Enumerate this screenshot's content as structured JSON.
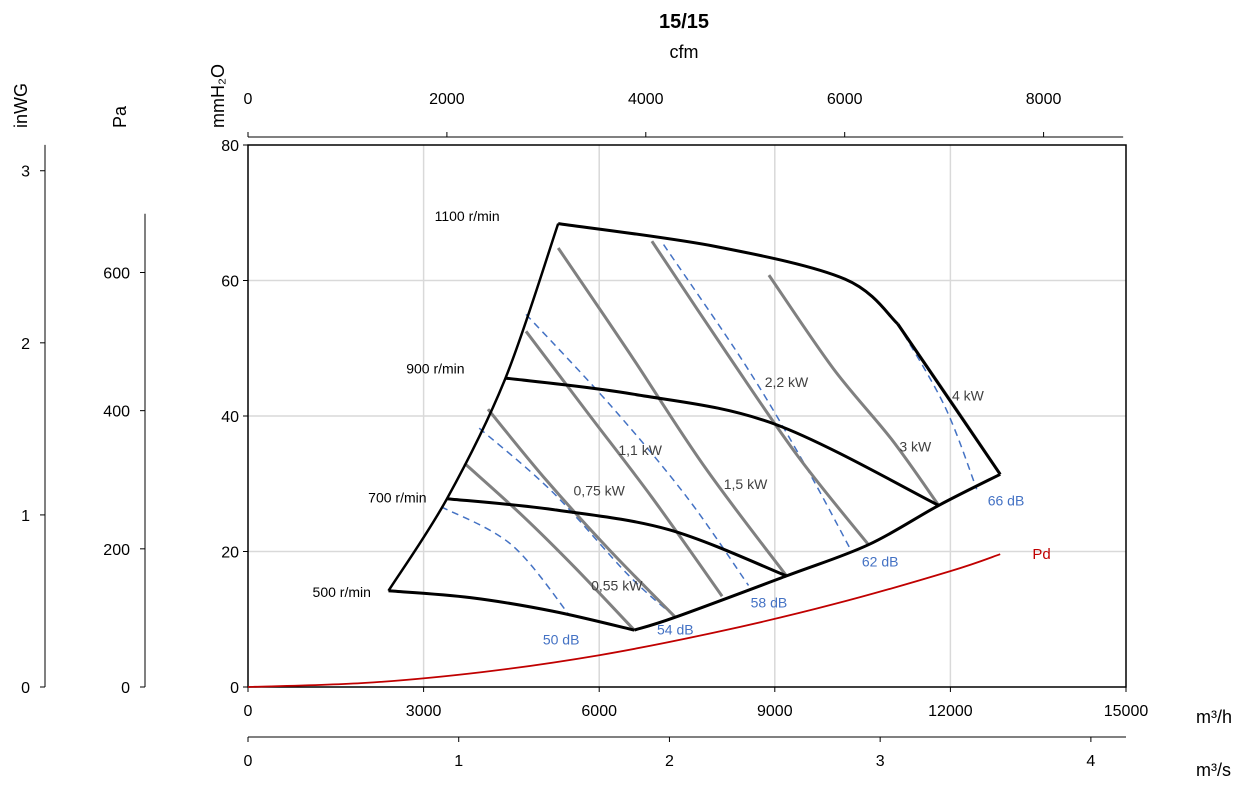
{
  "chart_data": {
    "type": "line",
    "title": "15/15",
    "xlabel": "m³/h",
    "xlabel_secondary": "m³/s",
    "xlabel_top": "cfm",
    "ylabel": "mmH₂O",
    "ylabel_secondary_pa": "Pa",
    "ylabel_secondary_inwg": "inWG",
    "xlim": [
      0,
      15000
    ],
    "ylim": [
      0,
      80
    ],
    "grid": true,
    "x_ticks": [
      0,
      3000,
      6000,
      9000,
      12000,
      15000
    ],
    "x_tick_labels": [
      "0",
      "3000",
      "6000",
      "9000",
      "12000",
      "15000"
    ],
    "y_ticks": [
      0,
      20,
      40,
      60,
      80
    ],
    "y_tick_labels": [
      "0",
      "20",
      "40",
      "60",
      "80"
    ],
    "cfm_ticks": [
      0,
      2000,
      4000,
      6000,
      8000
    ],
    "cfm_tick_labels": [
      "0",
      "2000",
      "4000",
      "6000",
      "8000"
    ],
    "m3s_ticks": [
      0,
      1,
      2,
      3,
      4
    ],
    "m3s_tick_labels": [
      "0",
      "1",
      "2",
      "3",
      "4"
    ],
    "pa_ticks": [
      0,
      200,
      400,
      600
    ],
    "pa_tick_labels": [
      "0",
      "200",
      "400",
      "600"
    ],
    "inwg_ticks": [
      0,
      1,
      2,
      3
    ],
    "inwg_tick_labels": [
      "0",
      "1",
      "2",
      "3"
    ],
    "rpm_curves": [
      {
        "name": "500 r/min",
        "points": [
          [
            2400,
            14.2
          ],
          [
            3800,
            13.2
          ],
          [
            5200,
            11.2
          ],
          [
            6600,
            8.4
          ]
        ]
      },
      {
        "name": "700 r/min",
        "points": [
          [
            3400,
            27.8
          ],
          [
            5200,
            26.2
          ],
          [
            7200,
            23.2
          ],
          [
            9200,
            16.4
          ]
        ]
      },
      {
        "name": "900 r/min",
        "points": [
          [
            4400,
            45.6
          ],
          [
            6600,
            43.2
          ],
          [
            9000,
            38.8
          ],
          [
            11800,
            26.8
          ]
        ]
      },
      {
        "name": "1100 r/min",
        "points": [
          [
            5300,
            68.4
          ],
          [
            8000,
            65.0
          ],
          [
            10200,
            60.2
          ],
          [
            11100,
            53.6
          ]
        ]
      }
    ],
    "boundary_left": [
      [
        2400,
        14.2
      ],
      [
        3400,
        27.8
      ],
      [
        4400,
        45.6
      ],
      [
        5300,
        68.4
      ]
    ],
    "boundary_right": [
      [
        6600,
        8.4
      ],
      [
        7300,
        10.3
      ],
      [
        9200,
        16.4
      ],
      [
        10600,
        21.0
      ],
      [
        11800,
        26.8
      ],
      [
        12850,
        31.4
      ]
    ],
    "boundary_right_top": [
      [
        11100,
        53.6
      ],
      [
        12850,
        31.4
      ]
    ],
    "power_curves": [
      {
        "name": "0,55 kW",
        "points": [
          [
            3700,
            33.0
          ],
          [
            4700,
            25.2
          ],
          [
            5600,
            17.5
          ],
          [
            6600,
            8.4
          ]
        ]
      },
      {
        "name": "0,75 kW",
        "points": [
          [
            4100,
            41.0
          ],
          [
            5100,
            30.5
          ],
          [
            6200,
            20.0
          ],
          [
            7300,
            10.3
          ]
        ]
      },
      {
        "name": "1,1 kW",
        "points": [
          [
            4750,
            52.5
          ],
          [
            5800,
            40.5
          ],
          [
            6900,
            28.0
          ],
          [
            8100,
            13.4
          ]
        ]
      },
      {
        "name": "1,5 kW",
        "points": [
          [
            5300,
            64.8
          ],
          [
            6500,
            49.5
          ],
          [
            7800,
            32.5
          ],
          [
            9200,
            16.4
          ]
        ]
      },
      {
        "name": "2,2 kW",
        "points": [
          [
            6900,
            65.8
          ],
          [
            8200,
            49.0
          ],
          [
            9400,
            34.0
          ],
          [
            10600,
            21.0
          ]
        ]
      },
      {
        "name": "3 kW",
        "points": [
          [
            8900,
            60.8
          ],
          [
            10000,
            47.0
          ],
          [
            11000,
            36.5
          ],
          [
            11800,
            26.8
          ]
        ]
      },
      {
        "name": "4 kW",
        "points": [
          [
            11100,
            53.6
          ],
          [
            12100,
            41.0
          ],
          [
            12850,
            31.4
          ]
        ]
      }
    ],
    "sound_curves": [
      {
        "name": "50 dB",
        "points": [
          [
            3300,
            26.6
          ],
          [
            4500,
            21.0
          ],
          [
            5500,
            10.5
          ]
        ]
      },
      {
        "name": "54 dB",
        "points": [
          [
            3950,
            38.2
          ],
          [
            5200,
            28.8
          ],
          [
            6500,
            16.5
          ],
          [
            7300,
            10.3
          ]
        ]
      },
      {
        "name": "58 dB",
        "points": [
          [
            4750,
            55.0
          ],
          [
            6200,
            41.5
          ],
          [
            7500,
            28.0
          ],
          [
            8550,
            15.0
          ]
        ]
      },
      {
        "name": "62 dB",
        "points": [
          [
            7100,
            65.3
          ],
          [
            8500,
            47.5
          ],
          [
            9500,
            33.0
          ],
          [
            10300,
            20.2
          ]
        ]
      },
      {
        "name": "66 dB",
        "points": [
          [
            11100,
            53.6
          ],
          [
            11900,
            41.5
          ],
          [
            12450,
            29.2
          ]
        ]
      }
    ],
    "pd_curve": {
      "name": "Pd",
      "points": [
        [
          0,
          0
        ],
        [
          2000,
          0.6
        ],
        [
          4000,
          2.2
        ],
        [
          6000,
          4.7
        ],
        [
          8000,
          8.1
        ],
        [
          10000,
          12.2
        ],
        [
          12000,
          17.1
        ],
        [
          12850,
          19.6
        ]
      ]
    },
    "colors": {
      "rpm": "#000000",
      "power": "#808080",
      "sound": "#4472c4",
      "pd": "#c00000",
      "grid": "#d9d9d9"
    }
  }
}
